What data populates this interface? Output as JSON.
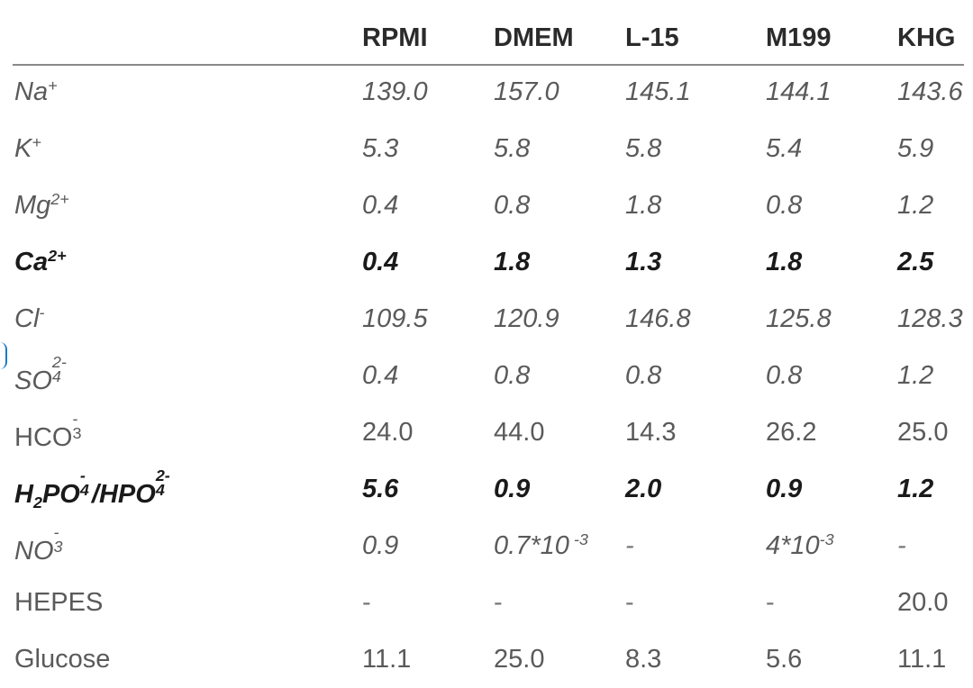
{
  "columns": [
    "",
    "RPMI",
    "DMEM",
    "L-15",
    "M199",
    "KHG"
  ],
  "rows": [
    {
      "label": {
        "base": "Na",
        "sup": "+"
      },
      "style": "italic",
      "values": [
        "139.0",
        "157.0",
        "145.1",
        "144.1",
        "143.6"
      ]
    },
    {
      "label": {
        "base": "K",
        "sup": "+"
      },
      "style": "italic",
      "values": [
        "5.3",
        "5.8",
        "5.8",
        "5.4",
        "5.9"
      ]
    },
    {
      "label": {
        "base": "Mg",
        "sup": "2+"
      },
      "style": "italic",
      "values": [
        "0.4",
        "0.8",
        "1.8",
        "0.8",
        "1.2"
      ]
    },
    {
      "label": {
        "base": "Ca",
        "sup": "2+"
      },
      "style": "bold-italic",
      "values": [
        "0.4",
        "1.8",
        "1.3",
        "1.8",
        "2.5"
      ]
    },
    {
      "label": {
        "base": "Cl",
        "sup": "-"
      },
      "style": "italic",
      "values": [
        "109.5",
        "120.9",
        "146.8",
        "125.8",
        "128.3"
      ]
    },
    {
      "label": {
        "base": "SO",
        "sub": "4",
        "sup": "2-"
      },
      "style": "italic",
      "values": [
        "0.4",
        "0.8",
        "0.8",
        "0.8",
        "1.2"
      ]
    },
    {
      "label": {
        "base": "HCO",
        "sub": "3",
        "sup": "-"
      },
      "style": "normal",
      "values": [
        "24.0",
        "44.0",
        "14.3",
        "26.2",
        "25.0"
      ]
    },
    {
      "label": {
        "p1": "H",
        "p1sub": "2",
        "p2": "PO",
        "p2sub": "4",
        "p2sup": "-",
        "p3": "/HPO",
        "p3sub": "4",
        "p3sup": "2-"
      },
      "style": "bold-italic",
      "values": [
        "5.6",
        "0.9",
        "2.0",
        "0.9",
        "1.2"
      ]
    },
    {
      "label": {
        "base": "NO",
        "sub": "3",
        "sup": "-"
      },
      "style": "italic",
      "values": [
        "0.9",
        {
          "base": "0.7*10",
          "sup": " -3"
        },
        "-",
        {
          "base": "4*10",
          "sup": "-3"
        },
        "-"
      ]
    },
    {
      "label": {
        "base": "HEPES"
      },
      "style": "normal",
      "values": [
        "-",
        "-",
        "-",
        "-",
        "20.0"
      ]
    },
    {
      "label": {
        "base": "Glucose"
      },
      "style": "normal",
      "values": [
        "11.1",
        "25.0",
        "8.3",
        "5.6",
        "11.1"
      ]
    }
  ]
}
